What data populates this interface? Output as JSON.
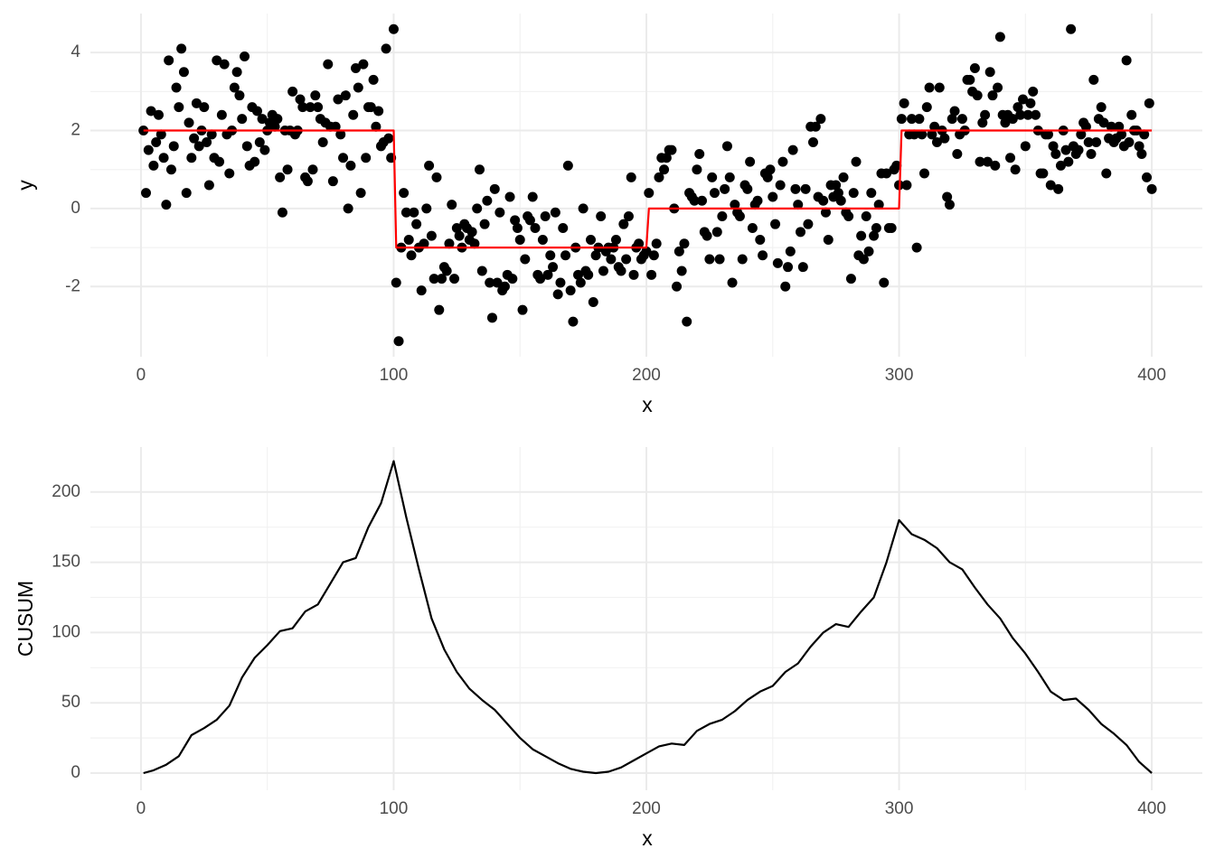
{
  "chart_data": [
    {
      "type": "scatter",
      "x_label": "x",
      "y_label": "y",
      "color": "#000000",
      "grid": true,
      "xlim": [
        -20,
        420
      ],
      "xticks": [
        0,
        100,
        200,
        300,
        400
      ],
      "ylim": [
        -3.8,
        5.0
      ],
      "yticks": [
        -2,
        0,
        2,
        4
      ],
      "x": [
        1,
        2,
        3,
        4,
        5,
        6,
        7,
        8,
        9,
        10,
        11,
        12,
        13,
        14,
        15,
        16,
        17,
        18,
        19,
        20,
        21,
        22,
        23,
        24,
        25,
        26,
        27,
        28,
        29,
        30,
        31,
        32,
        33,
        34,
        35,
        36,
        37,
        38,
        39,
        40,
        41,
        42,
        43,
        44,
        45,
        46,
        47,
        48,
        49,
        50,
        51,
        52,
        53,
        54,
        55,
        56,
        57,
        58,
        59,
        60,
        61,
        62,
        63,
        64,
        65,
        66,
        67,
        68,
        69,
        70,
        71,
        72,
        73,
        74,
        75,
        76,
        77,
        78,
        79,
        80,
        81,
        82,
        83,
        84,
        85,
        86,
        87,
        88,
        89,
        90,
        91,
        92,
        93,
        94,
        95,
        96,
        97,
        98,
        99,
        100,
        101,
        102,
        103,
        104,
        105,
        106,
        107,
        108,
        109,
        110,
        111,
        112,
        113,
        114,
        115,
        116,
        117,
        118,
        119,
        120,
        121,
        122,
        123,
        124,
        125,
        126,
        127,
        128,
        129,
        130,
        131,
        132,
        133,
        134,
        135,
        136,
        137,
        138,
        139,
        140,
        141,
        142,
        143,
        144,
        145,
        146,
        147,
        148,
        149,
        150,
        151,
        152,
        153,
        154,
        155,
        156,
        157,
        158,
        159,
        160,
        161,
        162,
        163,
        164,
        165,
        166,
        167,
        168,
        169,
        170,
        171,
        172,
        173,
        174,
        175,
        176,
        177,
        178,
        179,
        180,
        181,
        182,
        183,
        184,
        185,
        186,
        187,
        188,
        189,
        190,
        191,
        192,
        193,
        194,
        195,
        196,
        197,
        198,
        199,
        200,
        201,
        202,
        203,
        204,
        205,
        206,
        207,
        208,
        209,
        210,
        211,
        212,
        213,
        214,
        215,
        216,
        217,
        218,
        219,
        220,
        221,
        222,
        223,
        224,
        225,
        226,
        227,
        228,
        229,
        230,
        231,
        232,
        233,
        234,
        235,
        236,
        237,
        238,
        239,
        240,
        241,
        242,
        243,
        244,
        245,
        246,
        247,
        248,
        249,
        250,
        251,
        252,
        253,
        254,
        255,
        256,
        257,
        258,
        259,
        260,
        261,
        262,
        263,
        264,
        265,
        266,
        267,
        268,
        269,
        270,
        271,
        272,
        273,
        274,
        275,
        276,
        277,
        278,
        279,
        280,
        281,
        282,
        283,
        284,
        285,
        286,
        287,
        288,
        289,
        290,
        291,
        292,
        293,
        294,
        295,
        296,
        297,
        298,
        299,
        300,
        301,
        302,
        303,
        304,
        305,
        306,
        307,
        308,
        309,
        310,
        311,
        312,
        313,
        314,
        315,
        316,
        317,
        318,
        319,
        320,
        321,
        322,
        323,
        324,
        325,
        326,
        327,
        328,
        329,
        330,
        331,
        332,
        333,
        334,
        335,
        336,
        337,
        338,
        339,
        340,
        341,
        342,
        343,
        344,
        345,
        346,
        347,
        348,
        349,
        350,
        351,
        352,
        353,
        354,
        355,
        356,
        357,
        358,
        359,
        360,
        361,
        362,
        363,
        364,
        365,
        366,
        367,
        368,
        369,
        370,
        371,
        372,
        373,
        374,
        375,
        376,
        377,
        378,
        379,
        380,
        381,
        382,
        383,
        384,
        385,
        386,
        387,
        388,
        389,
        390,
        391,
        392,
        393,
        394,
        395,
        396,
        397,
        398,
        399,
        400
      ],
      "values": [
        2.0,
        0.4,
        1.5,
        2.5,
        1.1,
        1.7,
        2.4,
        1.9,
        1.3,
        0.1,
        3.8,
        1.0,
        1.6,
        3.1,
        2.6,
        4.1,
        3.5,
        0.4,
        2.2,
        1.3,
        1.8,
        2.7,
        1.6,
        2.0,
        2.6,
        1.7,
        0.6,
        1.9,
        1.3,
        3.8,
        1.2,
        2.4,
        3.7,
        1.9,
        0.9,
        2.0,
        3.1,
        3.5,
        2.9,
        2.3,
        3.9,
        1.6,
        1.1,
        2.6,
        1.2,
        2.5,
        1.7,
        2.3,
        1.5,
        2.0,
        2.2,
        2.4,
        2.1,
        2.3,
        0.8,
        -0.1,
        2.0,
        1.0,
        2.0,
        3.0,
        1.9,
        2.0,
        2.8,
        2.6,
        0.8,
        0.7,
        2.6,
        1.0,
        2.9,
        2.6,
        2.3,
        1.7,
        2.2,
        3.7,
        2.1,
        0.7,
        2.1,
        2.8,
        1.9,
        1.3,
        2.9,
        0.0,
        1.1,
        2.4,
        3.6,
        3.1,
        0.4,
        3.7,
        1.3,
        2.6,
        2.6,
        3.3,
        2.1,
        2.5,
        1.6,
        1.7,
        4.1,
        1.8,
        1.3,
        4.6,
        -1.9,
        -3.4,
        -1.0,
        0.4,
        -0.1,
        -0.8,
        -1.2,
        -0.1,
        -0.4,
        -1.0,
        -2.1,
        -0.9,
        0.0,
        1.1,
        -0.7,
        -1.8,
        0.8,
        -2.6,
        -1.8,
        -1.5,
        -1.6,
        -0.9,
        0.1,
        -1.8,
        -0.5,
        -0.7,
        -1.0,
        -0.4,
        -0.5,
        -0.8,
        -0.6,
        -0.9,
        0.0,
        1.0,
        -1.6,
        -0.4,
        0.2,
        -1.9,
        -2.8,
        0.5,
        -1.9,
        -0.1,
        -2.1,
        -2.0,
        -1.7,
        0.3,
        -1.8,
        -0.3,
        -0.5,
        -0.8,
        -2.6,
        -1.3,
        -0.2,
        -0.3,
        0.3,
        -0.5,
        -1.7,
        -1.8,
        -0.8,
        -0.2,
        -1.7,
        -1.2,
        -1.5,
        -0.1,
        -2.2,
        -1.9,
        -0.5,
        -1.2,
        1.1,
        -2.1,
        -2.9,
        -1.0,
        -1.7,
        -1.9,
        0.0,
        -1.6,
        -1.7,
        -0.8,
        -2.4,
        -1.2,
        -1.0,
        -0.2,
        -1.6,
        -1.1,
        -1.0,
        -1.3,
        -1.0,
        -0.8,
        -1.5,
        -1.6,
        -0.4,
        -1.3,
        -0.2,
        0.8,
        -1.7,
        -1.0,
        -0.9,
        -1.3,
        -1.2,
        -1.1,
        0.4,
        -1.7,
        -1.2,
        -0.9,
        0.8,
        1.3,
        1.0,
        1.3,
        1.5,
        1.5,
        0.0,
        -2.0,
        -1.1,
        -1.6,
        -0.9,
        -2.9,
        0.4,
        0.3,
        0.2,
        1.0,
        1.4,
        0.2,
        -0.6,
        -0.7,
        -1.3,
        0.8,
        0.4,
        -0.6,
        -1.3,
        -0.2,
        0.5,
        1.6,
        0.8,
        -1.9,
        0.1,
        -0.1,
        -0.2,
        -1.3,
        0.6,
        0.5,
        1.2,
        -0.5,
        0.1,
        0.2,
        -0.8,
        -1.2,
        0.9,
        0.8,
        1.0,
        0.3,
        -0.4,
        -1.4,
        0.6,
        1.2,
        -2.0,
        -1.5,
        -1.1,
        1.5,
        0.5,
        0.1,
        -0.6,
        -1.5,
        0.5,
        -0.4,
        2.1,
        1.7,
        2.1,
        0.3,
        2.3,
        0.2,
        -0.1,
        -0.8,
        0.6,
        0.3,
        0.6,
        0.4,
        0.2,
        0.8,
        -0.1,
        -0.2,
        -1.8,
        0.4,
        1.2,
        -1.2,
        -0.7,
        -1.3,
        -0.2,
        -1.1,
        0.4,
        -0.7,
        -0.5,
        0.1,
        0.9,
        -1.9,
        0.9,
        -0.5,
        -0.5,
        1.0,
        1.1,
        0.6,
        2.3,
        2.7,
        0.6,
        1.9,
        2.3,
        1.9,
        -1.0,
        2.3,
        1.9,
        0.9,
        2.6,
        3.1,
        1.9,
        2.1,
        1.7,
        3.1,
        2.0,
        1.8,
        0.3,
        0.1,
        2.3,
        2.5,
        1.4,
        1.9,
        2.3,
        2.0,
        3.3,
        3.3,
        3.0,
        3.6,
        2.9,
        1.2,
        2.2,
        2.4,
        1.2,
        3.5,
        2.9,
        1.1,
        3.1,
        4.4,
        2.4,
        2.2,
        2.4,
        1.3,
        2.3,
        1.0,
        2.6,
        2.4,
        2.8,
        1.6,
        2.4,
        2.7,
        3.0,
        2.4,
        2.0,
        0.9,
        0.9,
        1.9,
        1.9,
        0.6,
        1.6,
        1.4,
        0.5,
        1.1,
        2.0,
        1.5,
        1.2,
        4.6,
        1.6,
        1.4,
        1.5,
        1.9,
        2.2,
        2.1,
        1.7,
        1.4,
        3.3,
        1.7,
        2.3,
        2.6,
        2.2,
        0.9,
        1.8,
        2.1,
        1.7,
        1.8,
        2.1,
        1.9,
        1.6,
        3.8,
        1.7,
        2.4,
        2.0,
        2.0,
        1.6,
        1.4,
        1.9,
        0.8,
        2.7,
        0.5
      ],
      "fit": {
        "color": "#ff0000",
        "x": [
          1,
          100,
          101,
          200,
          201,
          300,
          301,
          400
        ],
        "values": [
          2,
          2,
          -1,
          -1,
          0,
          0,
          2,
          2
        ]
      }
    },
    {
      "type": "line",
      "x_label": "x",
      "y_label": "CUSUM",
      "color": "#000000",
      "grid": true,
      "xlim": [
        -20,
        420
      ],
      "xticks": [
        0,
        100,
        200,
        300,
        400
      ],
      "ylim": [
        -12.2,
        232
      ],
      "yticks": [
        0,
        50,
        100,
        150,
        200
      ],
      "x": [
        1,
        5,
        10,
        15,
        20,
        25,
        30,
        35,
        40,
        45,
        50,
        55,
        60,
        65,
        70,
        75,
        80,
        85,
        90,
        95,
        100,
        105,
        110,
        115,
        120,
        125,
        130,
        135,
        140,
        145,
        150,
        155,
        160,
        165,
        170,
        175,
        180,
        185,
        190,
        195,
        200,
        205,
        210,
        215,
        220,
        225,
        230,
        235,
        240,
        245,
        250,
        255,
        260,
        265,
        270,
        275,
        280,
        285,
        290,
        295,
        300,
        305,
        310,
        315,
        320,
        325,
        330,
        335,
        340,
        345,
        350,
        355,
        360,
        365,
        370,
        375,
        380,
        385,
        390,
        395,
        400
      ],
      "values": [
        0,
        2,
        6,
        12,
        27,
        32,
        38,
        48,
        68,
        82,
        91,
        101,
        103,
        115,
        120,
        135,
        150,
        153,
        175,
        192,
        222,
        182,
        145,
        110,
        88,
        72,
        60,
        52,
        45,
        35,
        25,
        17,
        12,
        7,
        3,
        1,
        0,
        1,
        4,
        9,
        14,
        19,
        21,
        20,
        30,
        35,
        38,
        44,
        52,
        58,
        62,
        72,
        78,
        90,
        100,
        106,
        104,
        115,
        125,
        150,
        180,
        170,
        166,
        160,
        150,
        145,
        132,
        120,
        110,
        96,
        85,
        72,
        58,
        52,
        53,
        45,
        35,
        28,
        20,
        8,
        0
      ]
    }
  ]
}
